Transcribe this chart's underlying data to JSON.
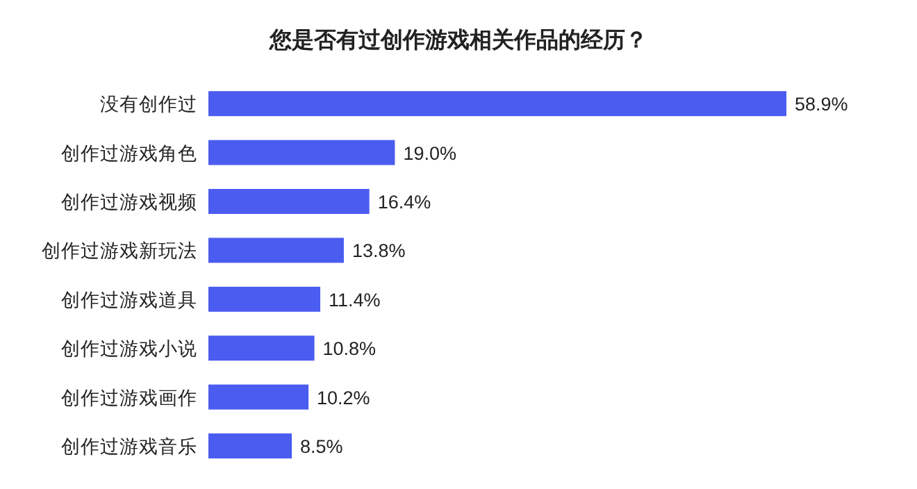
{
  "chart_data": {
    "type": "bar",
    "orientation": "horizontal",
    "title": "您是否有过创作游戏相关作品的经历？",
    "categories": [
      "没有创作过",
      "创作过游戏角色",
      "创作过游戏视频",
      "创作过游戏新玩法",
      "创作过游戏道具",
      "创作过游戏小说",
      "创作过游戏画作",
      "创作过游戏音乐"
    ],
    "values": [
      58.9,
      19.0,
      16.4,
      13.8,
      11.4,
      10.8,
      10.2,
      8.5
    ],
    "value_labels": [
      "58.9%",
      "19.0%",
      "16.4%",
      "13.8%",
      "11.4%",
      "10.8%",
      "10.2%",
      "8.5%"
    ],
    "color": "#4b5cf0"
  }
}
